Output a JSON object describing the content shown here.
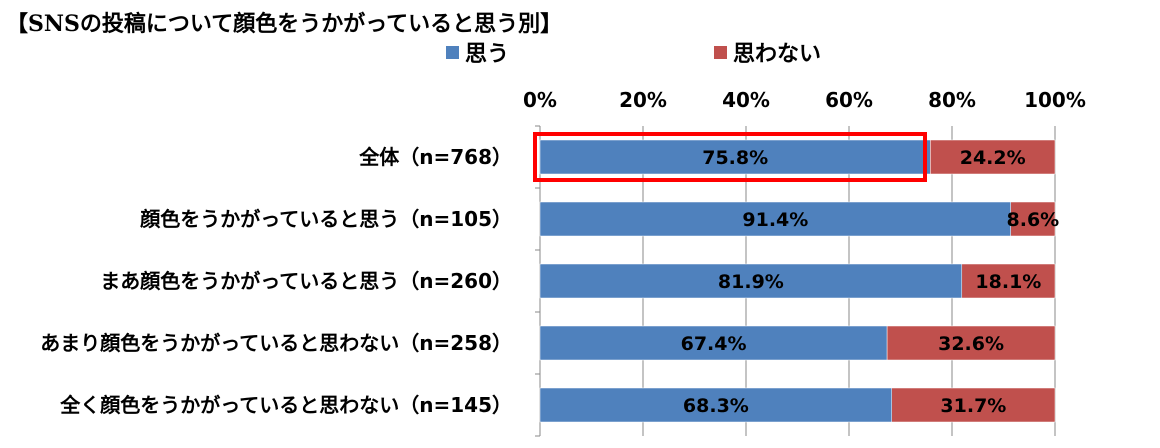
{
  "chart_data": {
    "type": "bar",
    "orientation": "horizontal",
    "stacked": true,
    "title": "【SNSの投稿について顔色をうかがっていると思う別】",
    "categories": [
      "全体（n=768）",
      "顔色をうかがっていると思う（n=105）",
      "まあ顔色をうかがっていると思う（n=260）",
      "あまり顔色をうかがっていると思わない（n=258）",
      "全く顔色をうかがっていると思わない（n=145）"
    ],
    "series": [
      {
        "name": "思う",
        "color": "#4F81BD",
        "values": [
          75.8,
          91.4,
          81.9,
          67.4,
          68.3
        ],
        "labels": [
          "75.8%",
          "91.4%",
          "81.9%",
          "67.4%",
          "68.3%"
        ]
      },
      {
        "name": "思わない",
        "color": "#C0504D",
        "values": [
          24.2,
          8.6,
          18.1,
          32.6,
          31.7
        ],
        "labels": [
          "24.2%",
          "8.6%",
          "18.1%",
          "32.6%",
          "31.7%"
        ]
      }
    ],
    "xlim": [
      0,
      100
    ],
    "xticks": [
      "0%",
      "20%",
      "40%",
      "60%",
      "80%",
      "100%"
    ],
    "legend_position": "top",
    "grid": "vertical",
    "highlight": {
      "category_index": 0,
      "color": "#FF0000"
    }
  }
}
